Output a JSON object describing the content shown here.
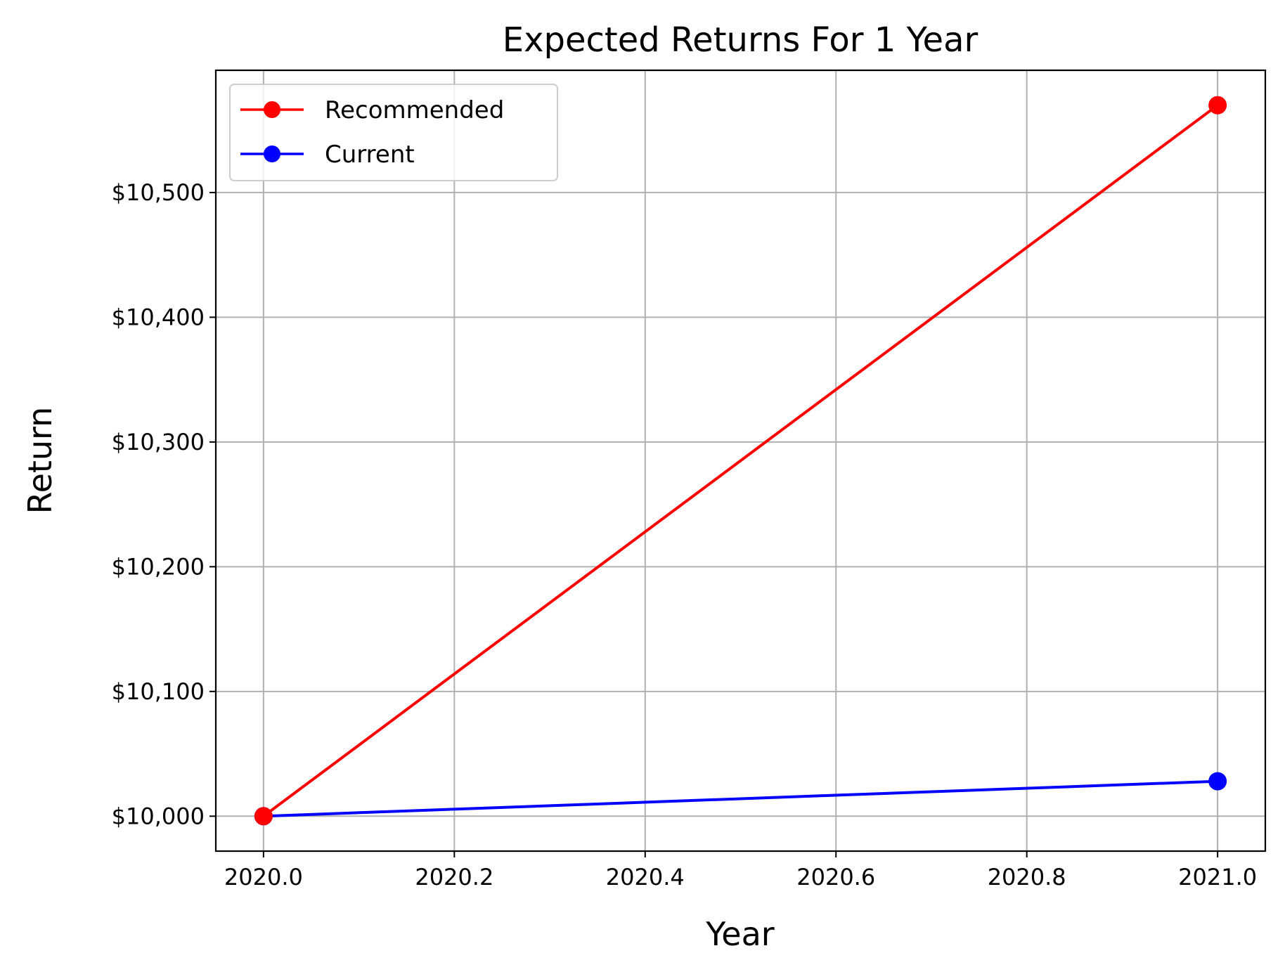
{
  "chart_data": {
    "type": "line",
    "title": "Expected Returns For 1 Year",
    "xlabel": "Year",
    "ylabel": "Return",
    "x": [
      2020.0,
      2021.0
    ],
    "xlim": [
      2019.95,
      2021.05
    ],
    "ylim": [
      9972,
      10598
    ],
    "xticks": [
      2020.0,
      2020.2,
      2020.4,
      2020.6,
      2020.8,
      2021.0
    ],
    "xtick_labels": [
      "2020.0",
      "2020.2",
      "2020.4",
      "2020.6",
      "2020.8",
      "2021.0"
    ],
    "yticks": [
      10000,
      10100,
      10200,
      10300,
      10400,
      10500
    ],
    "ytick_labels": [
      "$10,000",
      "$10,100",
      "$10,200",
      "$10,300",
      "$10,400",
      "$10,500"
    ],
    "grid": true,
    "legend_position": "upper-left",
    "series": [
      {
        "name": "Recommended",
        "color": "#ff0000",
        "values": [
          10000,
          10570
        ]
      },
      {
        "name": "Current",
        "color": "#0000ff",
        "values": [
          10000,
          10028
        ]
      }
    ]
  }
}
